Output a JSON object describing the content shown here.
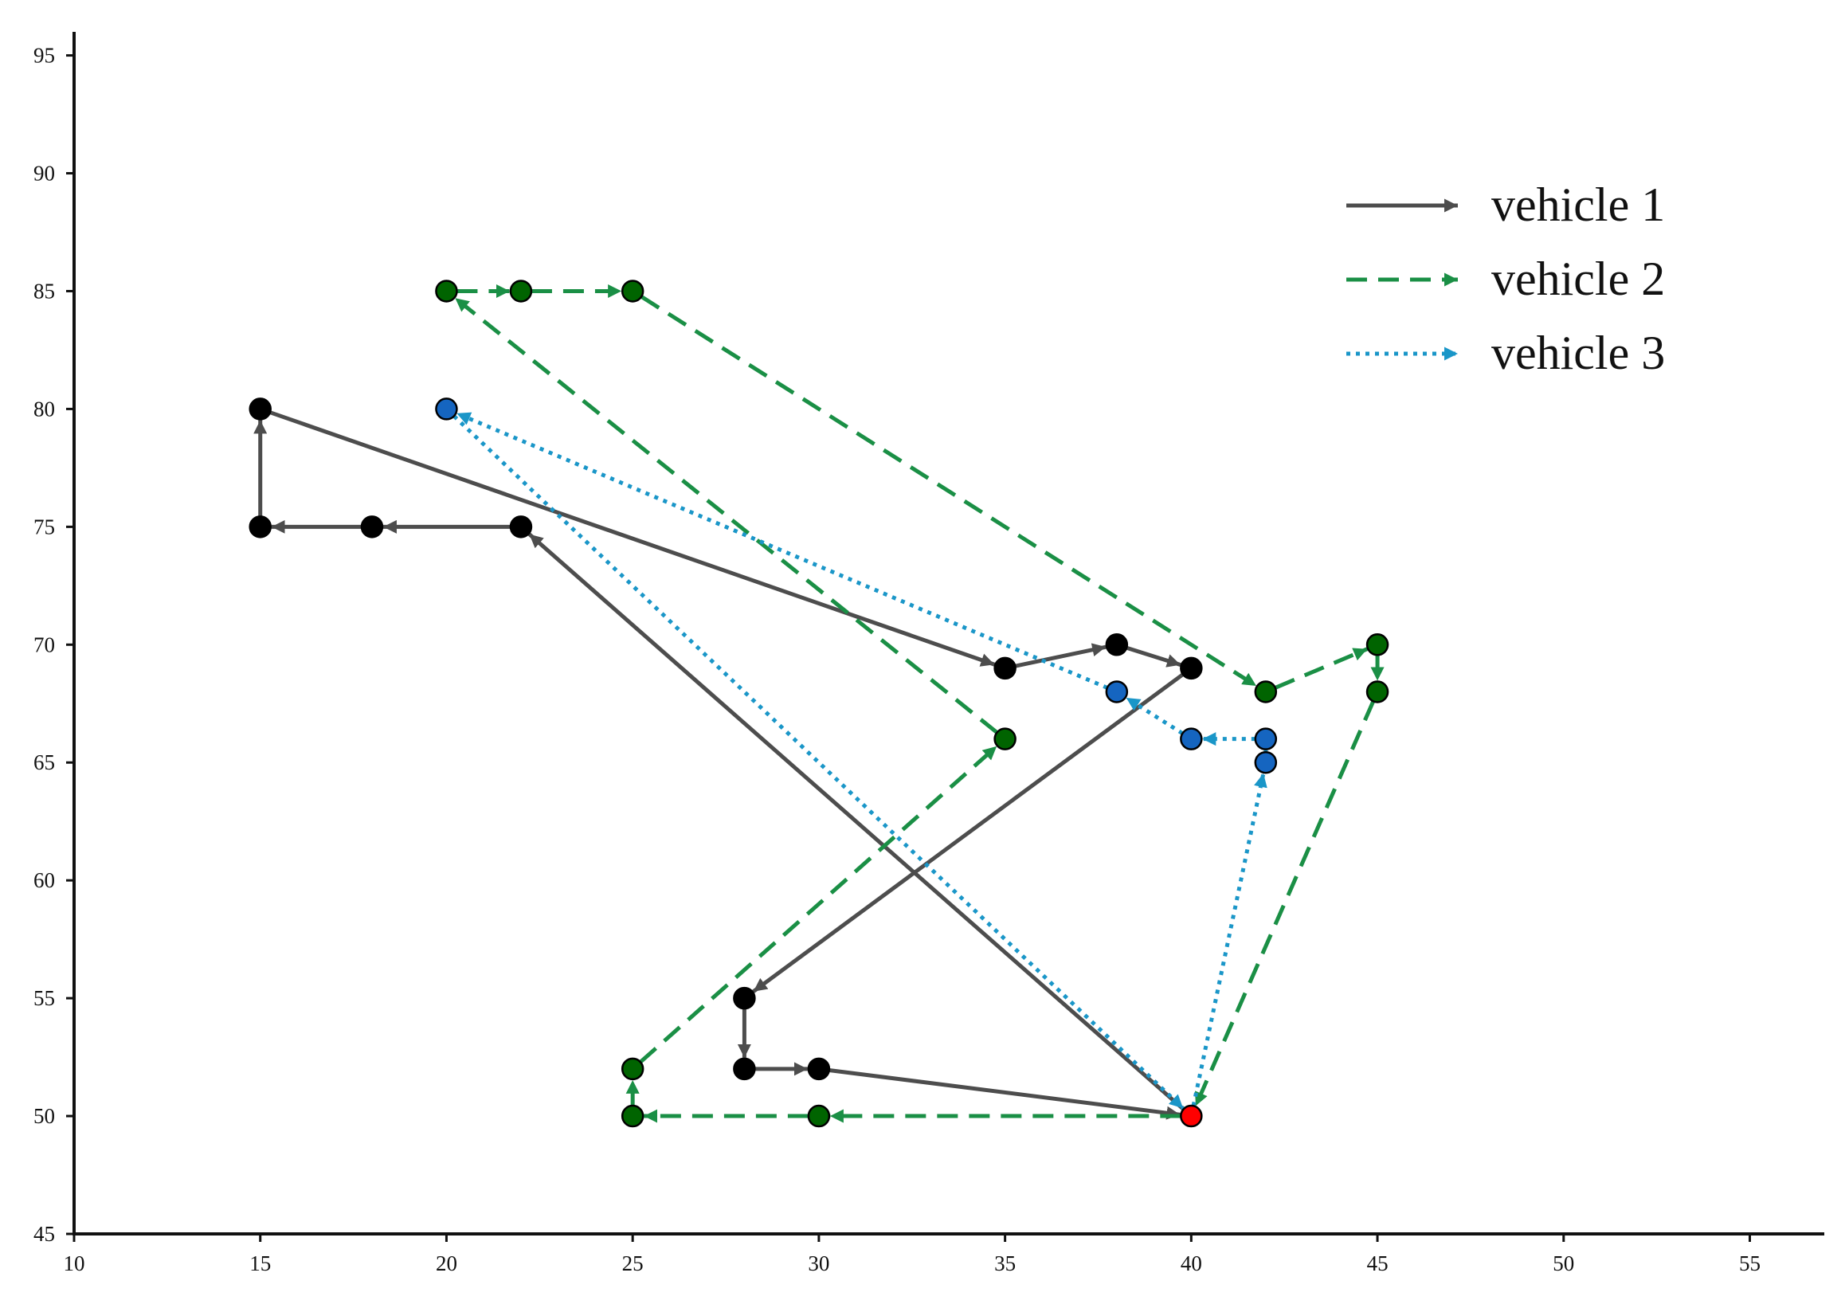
{
  "chart_data": {
    "type": "line",
    "title": "",
    "xlabel": "",
    "ylabel": "",
    "xlim": [
      10,
      57
    ],
    "ylim": [
      45,
      96
    ],
    "x_ticks": [
      10,
      15,
      20,
      25,
      30,
      35,
      40,
      45,
      50,
      55
    ],
    "y_ticks": [
      45,
      50,
      55,
      60,
      65,
      70,
      75,
      80,
      85,
      90,
      95
    ],
    "grid": false,
    "legend_position": "top-right",
    "depot": {
      "x": 40,
      "y": 50,
      "color": "#ff0000"
    },
    "series": [
      {
        "name": "vehicle 1",
        "line_style": "solid",
        "line_color": "#4d4d4d",
        "marker_color": "#000000",
        "points": [
          [
            40,
            50
          ],
          [
            22,
            75
          ],
          [
            18,
            75
          ],
          [
            15,
            75
          ],
          [
            15,
            80
          ],
          [
            35,
            69
          ],
          [
            38,
            70
          ],
          [
            40,
            69
          ],
          [
            28,
            55
          ],
          [
            28,
            52
          ],
          [
            30,
            52
          ],
          [
            40,
            50
          ]
        ]
      },
      {
        "name": "vehicle 2",
        "line_style": "dashed",
        "line_color": "#1a8f45",
        "marker_color": "#006400",
        "points": [
          [
            40,
            50
          ],
          [
            30,
            50
          ],
          [
            25,
            50
          ],
          [
            25,
            52
          ],
          [
            35,
            66
          ],
          [
            20,
            85
          ],
          [
            22,
            85
          ],
          [
            25,
            85
          ],
          [
            42,
            68
          ],
          [
            45,
            70
          ],
          [
            45,
            68
          ],
          [
            40,
            50
          ]
        ]
      },
      {
        "name": "vehicle 3",
        "line_style": "dotted",
        "line_color": "#1a96c8",
        "marker_color": "#1565c0",
        "points": [
          [
            40,
            50
          ],
          [
            42,
            65
          ],
          [
            42,
            66
          ],
          [
            40,
            66
          ],
          [
            38,
            68
          ],
          [
            20,
            80
          ],
          [
            40,
            50
          ]
        ]
      }
    ]
  }
}
